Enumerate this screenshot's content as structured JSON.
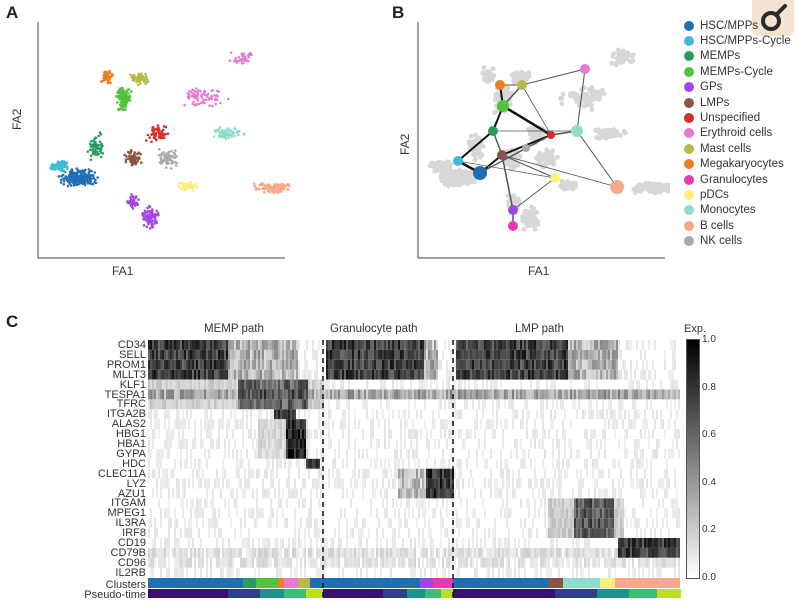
{
  "figure": {
    "panels": [
      {
        "letter": "A",
        "xlabel": "FA1",
        "ylabel": "FA2"
      },
      {
        "letter": "B",
        "xlabel": "FA1",
        "ylabel": "FA2"
      },
      {
        "letter": "C"
      }
    ]
  },
  "legend": [
    {
      "label": "HSC/MPPs",
      "color": "#1f6fb5"
    },
    {
      "label": "HSC/MPPs-Cycle",
      "color": "#3fbbd9"
    },
    {
      "label": "MEMPs",
      "color": "#2c9a63"
    },
    {
      "label": "MEMPs-Cycle",
      "color": "#53c23c"
    },
    {
      "label": "GPs",
      "color": "#a145e6"
    },
    {
      "label": "LMPs",
      "color": "#8a5548"
    },
    {
      "label": "Unspecified",
      "color": "#d62d2d"
    },
    {
      "label": "Erythroid cells",
      "color": "#e57ad0"
    },
    {
      "label": "Mast cells",
      "color": "#b6ba4a"
    },
    {
      "label": "Megakaryocytes",
      "color": "#f07d1f"
    },
    {
      "label": "Granulocytes",
      "color": "#ec37b4"
    },
    {
      "label": "pDCs",
      "color": "#fbf07a"
    },
    {
      "label": "Monocytes",
      "color": "#8fdccd"
    },
    {
      "label": "B cells",
      "color": "#f5a98a"
    },
    {
      "label": "NK cells",
      "color": "#aaaaaa"
    }
  ],
  "heatmap": {
    "paths": [
      "MEMP path",
      "Granulocyte path",
      "LMP path"
    ],
    "genes": [
      "CD34",
      "SELL",
      "PROM1",
      "MLLT3",
      "KLF1",
      "TESPA1",
      "TFRC",
      "ITGA2B",
      "ALAS2",
      "HBG1",
      "HBA1",
      "GYPA",
      "HDC",
      "CLEC11A",
      "LYZ",
      "AZU1",
      "ITGAM",
      "MPEG1",
      "IL3RA",
      "IRF8",
      "CD19",
      "CD79B",
      "CD96",
      "IL2RB"
    ],
    "track_labels": [
      "Clusters",
      "Pseudo-time"
    ],
    "colorbar": {
      "title": "Exp.",
      "ticks": [
        "1.0",
        "0.8",
        "0.6",
        "0.4",
        "0.2",
        "0.0"
      ],
      "range": [
        0,
        1
      ]
    }
  }
}
